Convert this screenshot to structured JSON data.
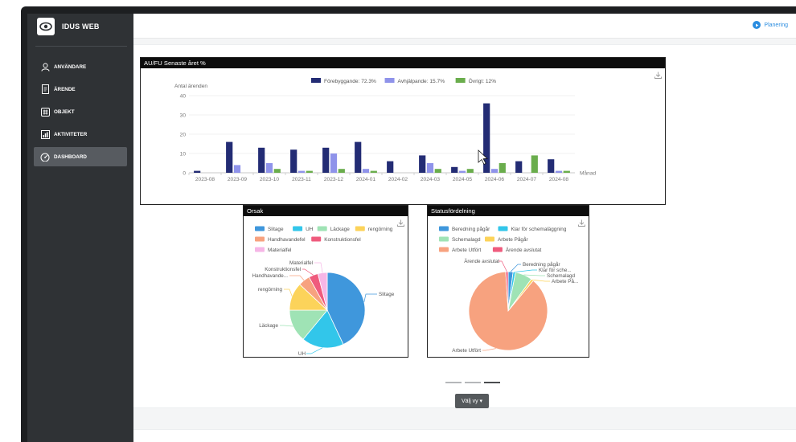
{
  "app": {
    "title": "IDUS WEB"
  },
  "sidebar": {
    "items": [
      {
        "label": "ANVÄNDARE",
        "icon": "user-icon"
      },
      {
        "label": "ÄRENDE",
        "icon": "document-icon"
      },
      {
        "label": "OBJEKT",
        "icon": "grid-icon"
      },
      {
        "label": "AKTIVITETER",
        "icon": "activity-chart-icon"
      },
      {
        "label": "DASHBOARD",
        "icon": "gauge-icon",
        "active": true
      }
    ]
  },
  "header": {
    "planering_label": "Planering",
    "accent": "#2b8de0"
  },
  "cards": {
    "bar_title": "AU/FU Senaste året %",
    "orsak_title": "Orsak",
    "status_title": "Statusfördelning"
  },
  "controls": {
    "select_view_label": "Välj vy ▾"
  },
  "carousel": {
    "pages": 3,
    "active_page": 3
  },
  "chart_data": [
    {
      "type": "bar",
      "title": "AU/FU Senaste året %",
      "ylabel": "Antal ärenden",
      "xlabel": "Månad",
      "ylim": [
        0,
        40
      ],
      "yticks": [
        0,
        10,
        20,
        30,
        40
      ],
      "legend_position": "top-center",
      "categories": [
        "2023-08",
        "2023-09",
        "2023-10",
        "2023-11",
        "2023-12",
        "2024-01",
        "2024-02",
        "2024-03",
        "2024-05",
        "2024-06",
        "2024-07",
        "2024-08"
      ],
      "series": [
        {
          "name": "Förebyggande: 72.3%",
          "color": "#232c74",
          "values": [
            1,
            16,
            13,
            12,
            13,
            16,
            6,
            9,
            3,
            36,
            6,
            7
          ]
        },
        {
          "name": "Avhjälpande: 15.7%",
          "color": "#8f93ea",
          "values": [
            0,
            4,
            5,
            1,
            10,
            2,
            0,
            5,
            1,
            2,
            0,
            1
          ]
        },
        {
          "name": "Övrigt: 12%",
          "color": "#6aad4c",
          "values": [
            0,
            0,
            2,
            1,
            2,
            1,
            0,
            2,
            2,
            5,
            9,
            1
          ]
        }
      ]
    },
    {
      "type": "pie",
      "title": "Orsak",
      "legend_position": "top",
      "slices": [
        {
          "label": "Slitage",
          "value": 43,
          "color": "#3f97dc"
        },
        {
          "label": "UH",
          "value": 18,
          "color": "#32c6ea"
        },
        {
          "label": "Läckage",
          "value": 14,
          "color": "#9fe3b5"
        },
        {
          "label": "rengörning",
          "value": 12,
          "color": "#fcd35a"
        },
        {
          "label": "Handhavandefel",
          "value": 5,
          "color": "#f7a27f"
        },
        {
          "label": "Konstruktionsfel",
          "value": 4,
          "color": "#ef5b7d"
        },
        {
          "label": "Materialfel",
          "value": 4,
          "color": "#f6b6e6"
        }
      ],
      "callouts": [
        "Slitage",
        "UH",
        "Läckage",
        "rengörning",
        "Handhavande...",
        "Konstruktionsfel",
        "Materialfel"
      ]
    },
    {
      "type": "pie",
      "title": "Statusfördelning",
      "legend_position": "top",
      "slices": [
        {
          "label": "Beredning pågår",
          "value": 2,
          "color": "#3f97dc"
        },
        {
          "label": "Klar för schemaläggning",
          "value": 1,
          "color": "#32c6ea"
        },
        {
          "label": "Schemalagd",
          "value": 7,
          "color": "#9fe3b5"
        },
        {
          "label": "Arbete Pågår",
          "value": 1,
          "color": "#fcd35a"
        },
        {
          "label": "Arbete Utfört",
          "value": 88,
          "color": "#f7a27f"
        },
        {
          "label": "Ärende avslutat",
          "value": 1,
          "color": "#ef5b7d"
        }
      ],
      "callouts": [
        "Beredning pågår",
        "Klar för sche...",
        "Schemalagd",
        "Arbete På...",
        "Arbete Utfört",
        "Ärende avslutat"
      ]
    }
  ]
}
